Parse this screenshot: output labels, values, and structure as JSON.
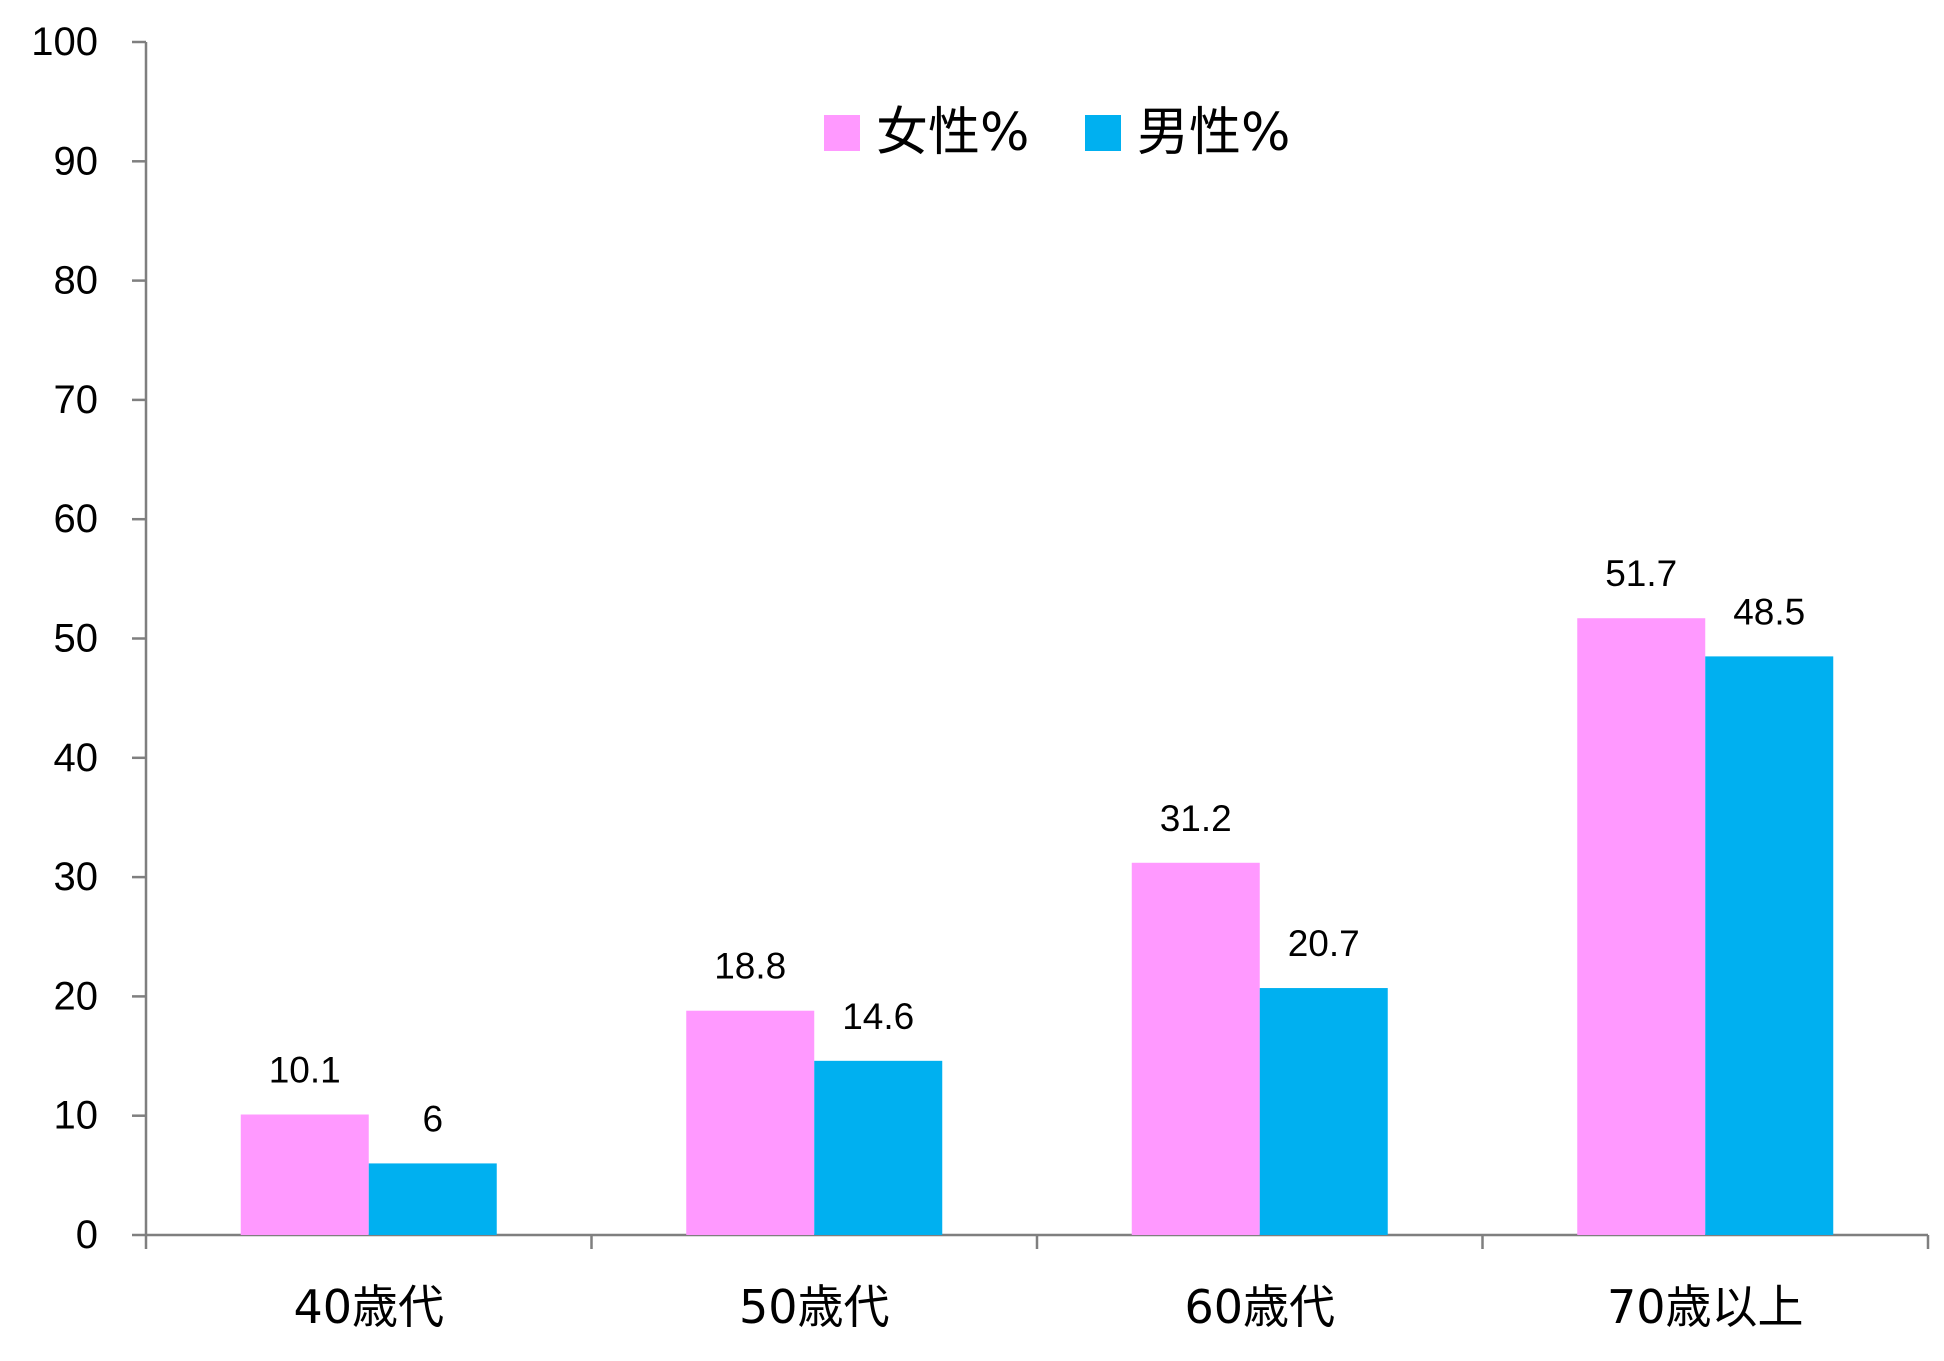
{
  "chart_data": {
    "type": "bar",
    "categories": [
      "40歳代",
      "50歳代",
      "60歳代",
      "70歳以上"
    ],
    "series": [
      {
        "name": "女性%",
        "values": [
          10.1,
          18.8,
          31.2,
          51.7
        ],
        "color": "#FF99FF"
      },
      {
        "name": "男性%",
        "values": [
          6,
          14.6,
          20.7,
          48.5
        ],
        "color": "#00B0F0"
      }
    ],
    "data_labels": [
      [
        "10.1",
        "18.8",
        "31.2",
        "51.7"
      ],
      [
        "6",
        "14.6",
        "20.7",
        "48.5"
      ]
    ],
    "y_ticks": [
      "0",
      "10",
      "20",
      "30",
      "40",
      "50",
      "60",
      "70",
      "80",
      "90",
      "100"
    ],
    "ylim": [
      0,
      100
    ],
    "grid": false,
    "legend_position": "top-center",
    "title": "",
    "xlabel": "",
    "ylabel": ""
  }
}
